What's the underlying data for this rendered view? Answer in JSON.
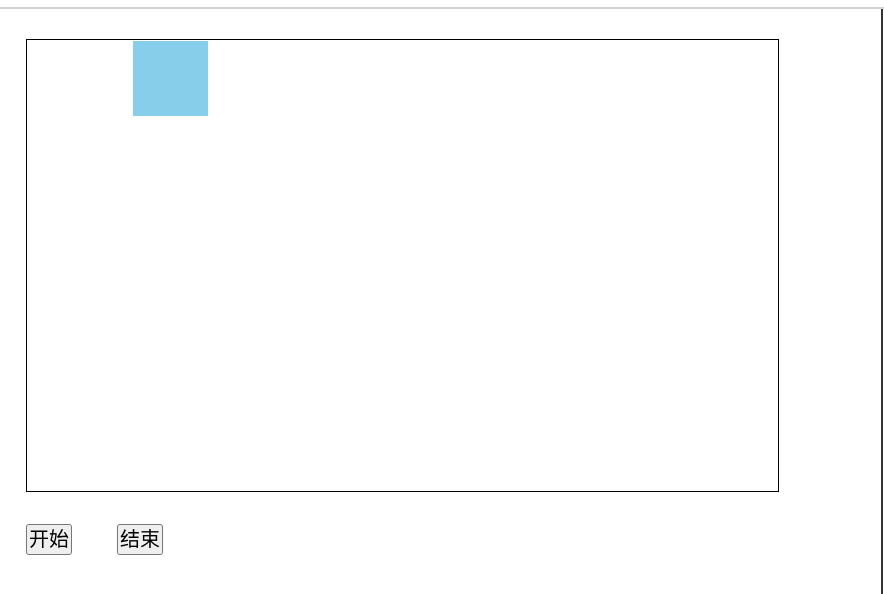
{
  "stage": {
    "box_color": "#87CEEB"
  },
  "controls": {
    "start_label": "开始",
    "stop_label": "结束"
  }
}
